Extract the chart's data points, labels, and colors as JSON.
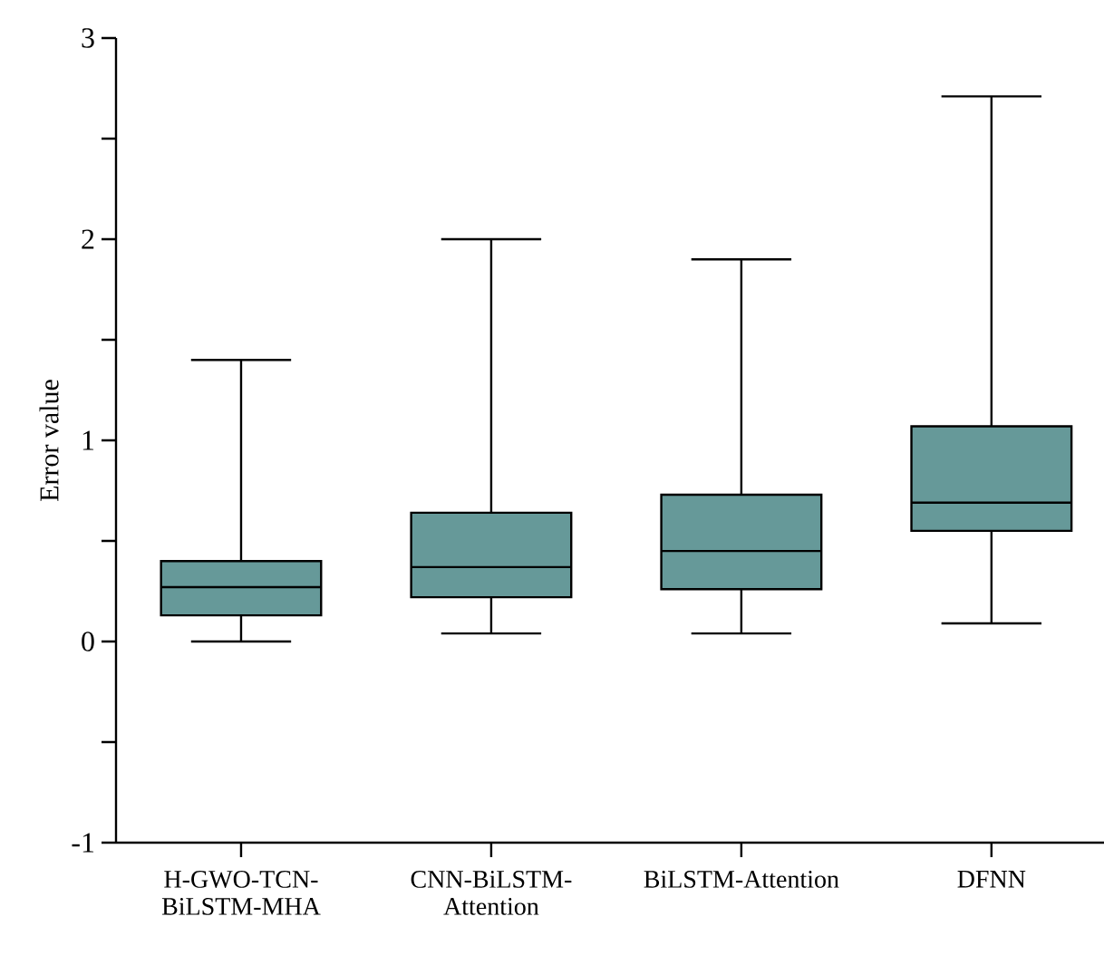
{
  "chart_data": {
    "type": "box",
    "ylabel": "Error value",
    "categories": [
      "H-GWO-TCN-BiLSTM-MHA",
      "CNN-BiLSTM-Attention",
      "BiLSTM-Attention",
      "DFNN"
    ],
    "color": "#669999",
    "boxes": [
      {
        "low": 0.0,
        "q1": 0.13,
        "median": 0.27,
        "q3": 0.4,
        "high": 1.4
      },
      {
        "low": 0.04,
        "q1": 0.22,
        "median": 0.37,
        "q3": 0.64,
        "high": 2.0
      },
      {
        "low": 0.04,
        "q1": 0.26,
        "median": 0.45,
        "q3": 0.73,
        "high": 1.9
      },
      {
        "low": 0.09,
        "q1": 0.55,
        "median": 0.69,
        "q3": 1.07,
        "high": 2.71
      }
    ],
    "ylim": [
      -1,
      3
    ],
    "yticks": [
      -1,
      {
        "value": -0.5,
        "label": null
      },
      0,
      {
        "value": 0.5,
        "label": null
      },
      1,
      {
        "value": 1.5,
        "label": null
      },
      2,
      {
        "value": 2.5,
        "label": null
      },
      3
    ],
    "tick_labels": true
  }
}
